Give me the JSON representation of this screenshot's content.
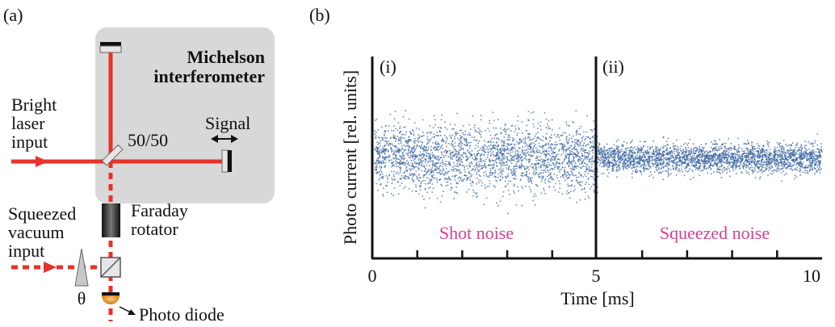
{
  "panel_a": {
    "label": "(a)",
    "box_title_line1": "Michelson",
    "box_title_line2": "interferometer",
    "laser_line1": "Bright",
    "laser_line2": "laser",
    "laser_line3": "input",
    "splitter": "50/50",
    "signal": "Signal",
    "faraday_line1": "Faraday",
    "faraday_line2": "rotator",
    "sq_line1": "Squeezed",
    "sq_line2": "vacuum",
    "sq_line3": "input",
    "theta": "θ",
    "photodiode": "Photo diode",
    "colors": {
      "laser": "#e8322a",
      "box": "#d8d8d8",
      "detector": "#e8a020"
    }
  },
  "panel_b": {
    "label": "(b)",
    "region_i": "(i)",
    "region_ii": "(ii)",
    "shot_noise": "Shot noise",
    "squeezed_noise": "Squeezed noise",
    "ylabel": "Photo current [rel. units]",
    "xlabel": "Time [ms]",
    "xticks": [
      "0",
      "5",
      "10"
    ],
    "colors": {
      "dots": "#3a64a0",
      "annotation": "#d6408f"
    }
  },
  "chart_data": {
    "type": "scatter",
    "xlabel": "Time [ms]",
    "ylabel": "Photo current [rel. units]",
    "xlim": [
      0,
      10
    ],
    "ylim": [
      -1,
      1
    ],
    "series": [
      {
        "name": "Shot noise",
        "x_range": [
          0,
          5
        ],
        "mean": 0.0,
        "spread": 0.5
      },
      {
        "name": "Squeezed noise",
        "x_range": [
          5,
          10
        ],
        "mean": 0.0,
        "spread": 0.22
      }
    ]
  }
}
